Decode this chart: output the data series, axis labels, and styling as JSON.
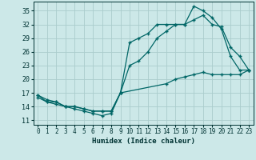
{
  "title": "",
  "xlabel": "Humidex (Indice chaleur)",
  "bg_color": "#cce8e8",
  "grid_color": "#aacccc",
  "line_color": "#006666",
  "xlim": [
    -0.5,
    23.5
  ],
  "ylim": [
    10.0,
    37.0
  ],
  "yticks": [
    11,
    14,
    17,
    20,
    23,
    26,
    29,
    32,
    35
  ],
  "xticks": [
    0,
    1,
    2,
    3,
    4,
    5,
    6,
    7,
    8,
    9,
    10,
    11,
    12,
    13,
    14,
    15,
    16,
    17,
    18,
    19,
    20,
    21,
    22,
    23
  ],
  "line1_x": [
    0,
    1,
    2,
    3,
    4,
    5,
    6,
    7,
    8,
    9,
    10,
    11,
    12,
    13,
    14,
    15,
    16,
    17,
    18,
    19,
    20,
    21,
    22,
    23
  ],
  "line1_y": [
    16,
    15,
    15,
    14,
    13.5,
    13,
    12.5,
    12,
    12.5,
    17,
    28,
    29,
    30,
    32,
    32,
    32,
    32,
    36,
    35,
    33.5,
    31,
    25,
    22,
    22
  ],
  "line2_x": [
    0,
    1,
    2,
    3,
    4,
    5,
    6,
    7,
    8,
    9,
    10,
    11,
    12,
    13,
    14,
    15,
    16,
    17,
    18,
    19,
    20,
    21,
    22,
    23
  ],
  "line2_y": [
    16.5,
    15,
    14.5,
    14,
    14,
    13.5,
    13,
    13,
    13,
    17,
    23,
    24,
    26,
    29,
    30.5,
    32,
    32,
    33,
    34,
    32,
    31.5,
    27,
    25,
    22
  ],
  "line3_x": [
    0,
    1,
    2,
    3,
    4,
    5,
    6,
    7,
    8,
    9,
    14,
    15,
    16,
    17,
    18,
    19,
    20,
    21,
    22,
    23
  ],
  "line3_y": [
    16.5,
    15.5,
    15,
    14,
    14,
    13.5,
    13,
    13,
    13,
    17,
    19,
    20,
    20.5,
    21,
    21.5,
    21,
    21,
    21,
    21,
    22
  ]
}
